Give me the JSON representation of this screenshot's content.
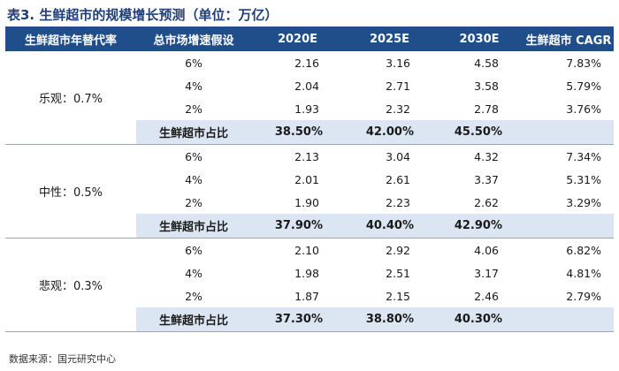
{
  "title": "表3. 生鲜超市的规模增长预测（单位：万亿）",
  "headers": [
    "生鲜超市年替代率",
    "总市场增速假设",
    "2020E",
    "2025E",
    "2030E",
    "生鲜超市 CAGR"
  ],
  "groups": [
    {
      "scenario": "乐观：0.7%",
      "rows": [
        {
          "growth": "6%",
          "v2020": "2.16",
          "v2025": "3.16",
          "v2030": "4.58",
          "cagr": "7.83%"
        },
        {
          "growth": "4%",
          "v2020": "2.04",
          "v2025": "2.71",
          "v2030": "3.58",
          "cagr": "5.79%"
        },
        {
          "growth": "2%",
          "v2020": "1.93",
          "v2025": "2.32",
          "v2030": "2.78",
          "cagr": "3.76%"
        }
      ],
      "share": {
        "label": "生鲜超市占比",
        "v2020": "38.50%",
        "v2025": "42.00%",
        "v2030": "45.50%"
      }
    },
    {
      "scenario": "中性：0.5%",
      "rows": [
        {
          "growth": "6%",
          "v2020": "2.13",
          "v2025": "3.04",
          "v2030": "4.32",
          "cagr": "7.34%"
        },
        {
          "growth": "4%",
          "v2020": "2.01",
          "v2025": "2.61",
          "v2030": "3.37",
          "cagr": "5.31%"
        },
        {
          "growth": "2%",
          "v2020": "1.90",
          "v2025": "2.23",
          "v2030": "2.62",
          "cagr": "3.29%"
        }
      ],
      "share": {
        "label": "生鲜超市占比",
        "v2020": "37.90%",
        "v2025": "40.40%",
        "v2030": "42.90%"
      }
    },
    {
      "scenario": "悲观：0.3%",
      "rows": [
        {
          "growth": "6%",
          "v2020": "2.10",
          "v2025": "2.92",
          "v2030": "4.06",
          "cagr": "6.82%"
        },
        {
          "growth": "4%",
          "v2020": "1.98",
          "v2025": "2.51",
          "v2030": "3.17",
          "cagr": "4.81%"
        },
        {
          "growth": "2%",
          "v2020": "1.87",
          "v2025": "2.15",
          "v2030": "2.46",
          "cagr": "2.79%"
        }
      ],
      "share": {
        "label": "生鲜超市占比",
        "v2020": "37.30%",
        "v2025": "38.80%",
        "v2030": "40.30%"
      }
    }
  ],
  "source": "数据来源：国元研究中心",
  "colors": {
    "header_bg": "#1f4e8a",
    "share_bg": "#dce6f2",
    "title": "#1f3f7a"
  }
}
